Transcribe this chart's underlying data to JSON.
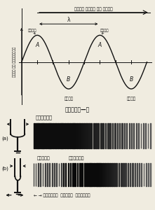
{
  "bg_color": "#f0ece0",
  "title_wave_direction": "तरंग चलने की दिशा",
  "ylabel_wave": "कणों का विस्थापन",
  "label_shring": "शृंग",
  "label_gat": "गर्त",
  "label_lambda": "λ",
  "label_A": "A",
  "label_B": "B",
  "caption": "चित्र—अ",
  "label_a": "(a)",
  "label_b": "(b)",
  "label_sampeedan_a": "संपीडन",
  "label_viralun_b": "विरलन",
  "label_sampeedan_b": "संपीडन",
  "bottom_label": "← → संपीडन  विरलन  संपीडन",
  "line_color": "#111111"
}
